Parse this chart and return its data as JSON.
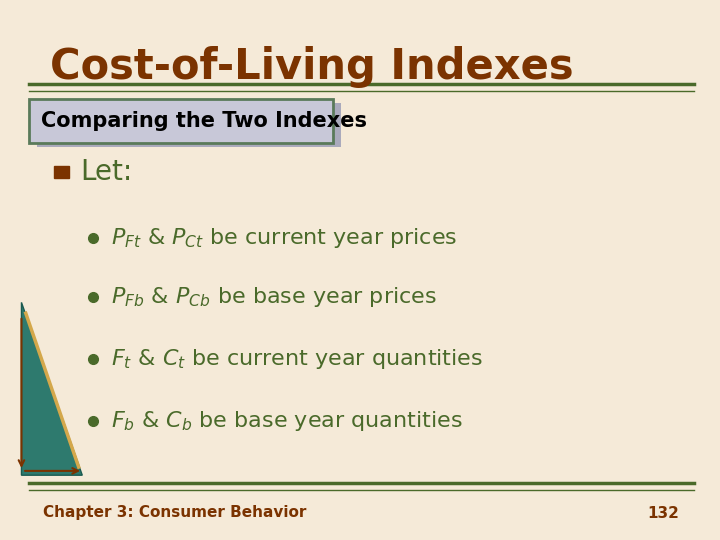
{
  "title": "Cost-of-Living Indexes",
  "subtitle_box": "Comparing the Two Indexes",
  "background_color": "#f5ead8",
  "title_color": "#7b3300",
  "subtitle_color": "#000000",
  "subtitle_bg": "#c8c8d8",
  "subtitle_border": "#5a7a5a",
  "bullet_color": "#7b3300",
  "text_color": "#4a6a2a",
  "line_color": "#4a6a2a",
  "footer_text": "Chapter 3: Consumer Behavior",
  "footer_page": "132",
  "footer_color": "#7b3300"
}
